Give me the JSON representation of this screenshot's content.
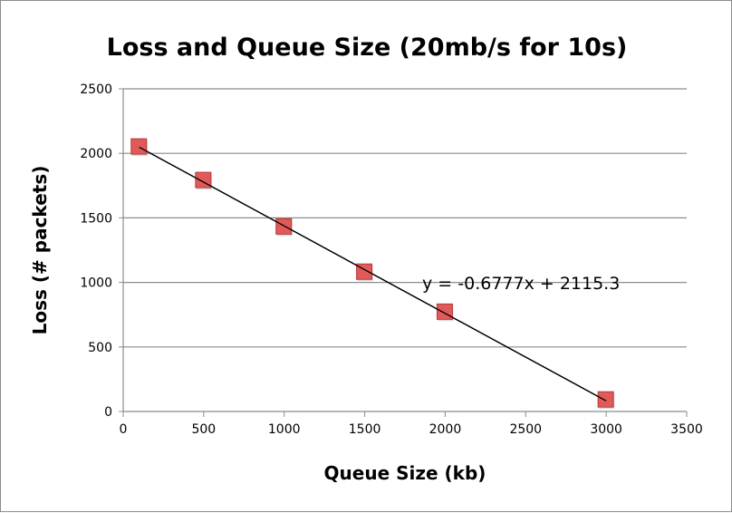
{
  "chart_data": {
    "type": "scatter",
    "title": "Loss and Queue Size (20mb/s for 10s)",
    "xlabel": "Queue Size (kb)",
    "ylabel": "Loss (# packets)",
    "xlim": [
      0,
      3500
    ],
    "ylim": [
      0,
      2500
    ],
    "xticks": [
      0,
      500,
      1000,
      1500,
      2000,
      2500,
      3000,
      3500
    ],
    "yticks": [
      0,
      500,
      1000,
      1500,
      2000,
      2500
    ],
    "grid": "horizontal",
    "legend": "none",
    "series": [
      {
        "x": [
          100,
          500,
          1000,
          1500,
          2000,
          3000
        ],
        "y": [
          2050,
          1790,
          1430,
          1080,
          770,
          90
        ],
        "marker": "square",
        "color": "#e05a5a"
      }
    ],
    "trendline": {
      "type": "linear",
      "slope": -0.6777,
      "intercept": 2115.3,
      "x_range": [
        100,
        3000
      ],
      "color": "#000000",
      "label": "y = -0.6777x + 2115.3"
    }
  }
}
